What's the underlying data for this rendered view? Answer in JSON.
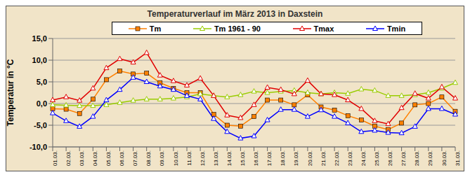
{
  "chart_data": {
    "type": "line",
    "title": "Temperaturverlauf im März 2013 in Daxstein",
    "y_label": "Temperatur in °C",
    "categories": [
      "01.03.",
      "02.03.",
      "03.03.",
      "04.03.",
      "05.03.",
      "06.03.",
      "07.03.",
      "08.03.",
      "09.03.",
      "10.03.",
      "11.03.",
      "12.03.",
      "13.03.",
      "14.03.",
      "15.03.",
      "16.03.",
      "17.03.",
      "18.03.",
      "19.03.",
      "20.03.",
      "21.03.",
      "22.03.",
      "23.03.",
      "24.03.",
      "25.03.",
      "26.03.",
      "27.03.",
      "28.03.",
      "29.03.",
      "30.03.",
      "31.03."
    ],
    "series": [
      {
        "name": "Tm",
        "color": "#ff8000",
        "marker": "square",
        "values": [
          -1.2,
          -1.3,
          -2.3,
          1.0,
          5.5,
          7.5,
          6.8,
          7.0,
          4.8,
          3.5,
          2.5,
          2.5,
          -2.5,
          -5.0,
          -5.2,
          -3.0,
          0.8,
          0.8,
          -0.3,
          2.0,
          -0.8,
          -1.5,
          -2.8,
          -3.8,
          -5.2,
          -6.0,
          -4.5,
          -0.3,
          0.0,
          1.5,
          -1.8
        ]
      },
      {
        "name": "Tm 1961 - 90",
        "color": "#99cc00",
        "marker": "triangle",
        "values": [
          -0.3,
          -0.4,
          -0.5,
          -0.5,
          -0.3,
          0.2,
          0.7,
          1.0,
          1.0,
          1.2,
          1.5,
          2.2,
          1.8,
          1.5,
          2.0,
          2.8,
          2.5,
          2.8,
          3.0,
          2.5,
          2.2,
          2.5,
          2.3,
          3.3,
          3.0,
          1.8,
          1.8,
          2.0,
          2.5,
          3.5,
          4.8
        ]
      },
      {
        "name": "Tmax",
        "color": "#e00000",
        "marker": "triangle",
        "values": [
          0.8,
          1.5,
          0.7,
          3.5,
          8.2,
          10.3,
          9.5,
          11.7,
          6.5,
          5.2,
          4.2,
          5.8,
          1.8,
          -2.7,
          -3.3,
          -0.3,
          3.7,
          3.2,
          2.2,
          5.3,
          2.2,
          2.0,
          0.8,
          -1.2,
          -4.0,
          -4.7,
          -1.0,
          2.3,
          1.2,
          3.8,
          1.2
        ]
      },
      {
        "name": "Tmin",
        "color": "#0000ff",
        "marker": "triangle",
        "values": [
          -2.2,
          -4.0,
          -5.3,
          -3.0,
          0.8,
          3.2,
          6.0,
          5.0,
          4.0,
          3.2,
          1.8,
          1.0,
          -3.5,
          -6.5,
          -8.0,
          -7.5,
          -3.8,
          -1.4,
          -1.4,
          -3.0,
          -1.5,
          -3.0,
          -4.5,
          -6.5,
          -6.2,
          -6.7,
          -6.8,
          -5.3,
          -1.2,
          -1.2,
          -2.5
        ]
      }
    ],
    "ylim": [
      -10,
      15
    ],
    "yticks": [
      {
        "value": -10,
        "label": "-10,0"
      },
      {
        "value": -5,
        "label": "-5,0"
      },
      {
        "value": 0,
        "label": "0,0"
      },
      {
        "value": 5,
        "label": "5,0"
      },
      {
        "value": 10,
        "label": "10,0"
      },
      {
        "value": 15,
        "label": "15,0"
      }
    ],
    "grid": true,
    "legend": "top"
  }
}
